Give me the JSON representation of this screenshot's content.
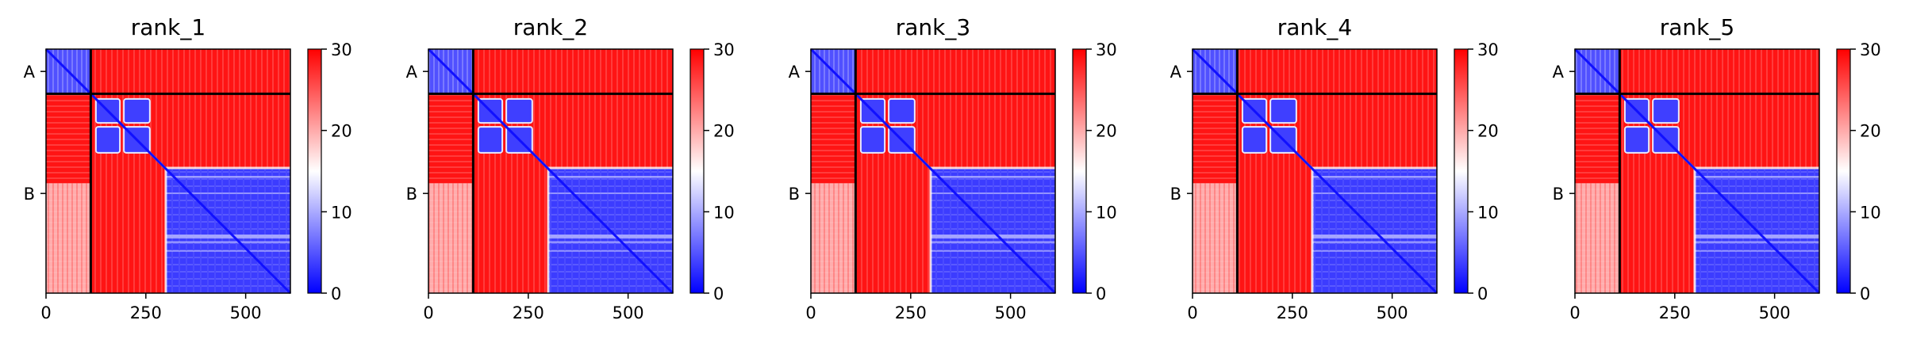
{
  "chart_data": [
    {
      "type": "heatmap",
      "title": "rank_1",
      "xticks": [
        0,
        250,
        500
      ],
      "xlim": [
        0,
        612
      ],
      "yticks": [
        "A",
        "B"
      ],
      "chain_boundary": 112,
      "length": 612,
      "colorbar": {
        "min": 0,
        "max": 30,
        "ticks": [
          0,
          10,
          20,
          30
        ],
        "colors": [
          "#0000ff",
          "#ffffff",
          "#ff0000"
        ]
      }
    },
    {
      "type": "heatmap",
      "title": "rank_2",
      "xticks": [
        0,
        250,
        500
      ],
      "xlim": [
        0,
        612
      ],
      "yticks": [
        "A",
        "B"
      ],
      "chain_boundary": 112,
      "length": 612,
      "colorbar": {
        "min": 0,
        "max": 30,
        "ticks": [
          0,
          10,
          20,
          30
        ],
        "colors": [
          "#0000ff",
          "#ffffff",
          "#ff0000"
        ]
      }
    },
    {
      "type": "heatmap",
      "title": "rank_3",
      "xticks": [
        0,
        250,
        500
      ],
      "xlim": [
        0,
        612
      ],
      "yticks": [
        "A",
        "B"
      ],
      "chain_boundary": 112,
      "length": 612,
      "colorbar": {
        "min": 0,
        "max": 30,
        "ticks": [
          0,
          10,
          20,
          30
        ],
        "colors": [
          "#0000ff",
          "#ffffff",
          "#ff0000"
        ]
      }
    },
    {
      "type": "heatmap",
      "title": "rank_4",
      "xticks": [
        0,
        250,
        500
      ],
      "xlim": [
        0,
        612
      ],
      "yticks": [
        "A",
        "B"
      ],
      "chain_boundary": 112,
      "length": 612,
      "colorbar": {
        "min": 0,
        "max": 30,
        "ticks": [
          0,
          10,
          20,
          30
        ],
        "colors": [
          "#0000ff",
          "#ffffff",
          "#ff0000"
        ]
      }
    },
    {
      "type": "heatmap",
      "title": "rank_5",
      "xticks": [
        0,
        250,
        500
      ],
      "xlim": [
        0,
        612
      ],
      "yticks": [
        "A",
        "B"
      ],
      "chain_boundary": 112,
      "length": 612,
      "colorbar": {
        "min": 0,
        "max": 30,
        "ticks": [
          0,
          10,
          20,
          30
        ],
        "colors": [
          "#0000ff",
          "#ffffff",
          "#ff0000"
        ]
      }
    }
  ]
}
